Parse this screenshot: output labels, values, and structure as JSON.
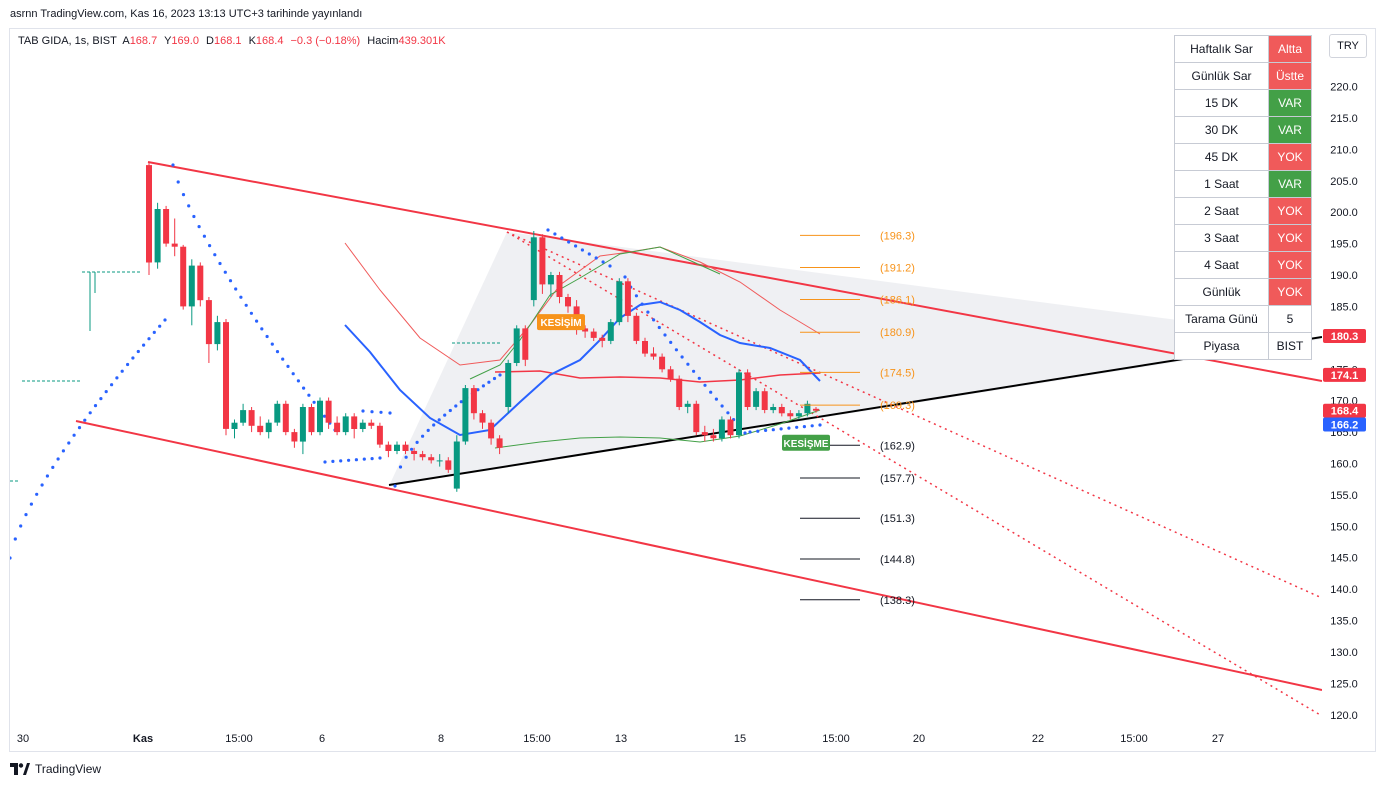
{
  "attribution": "asrnn TradingView.com, Kas 16, 2023 13:13 UTC+3 tarihinde yayınlandı",
  "legend": {
    "symbol": "TAB GIDA, 1s, BIST",
    "open_label": "A",
    "open": "168.7",
    "high_label": "Y",
    "high": "169.0",
    "low_label": "D",
    "low": "168.1",
    "close_label": "K",
    "close": "168.4",
    "change": "−0.3 (−0.18%)",
    "volume_label": "Hacim",
    "volume": "439.301K"
  },
  "currency_button": "TRY",
  "brand": "TradingView",
  "status_table": [
    {
      "label": "Haftalık Sar",
      "value": "Altta",
      "color": "#f05a5a"
    },
    {
      "label": "Günlük Sar",
      "value": "Üstte",
      "color": "#f05a5a"
    },
    {
      "label": "15 DK",
      "value": "VAR",
      "color": "#43a047"
    },
    {
      "label": "30 DK",
      "value": "VAR",
      "color": "#43a047"
    },
    {
      "label": "45 DK",
      "value": "YOK",
      "color": "#f05a5a"
    },
    {
      "label": "1 Saat",
      "value": "VAR",
      "color": "#43a047"
    },
    {
      "label": "2 Saat",
      "value": "YOK",
      "color": "#f05a5a"
    },
    {
      "label": "3 Saat",
      "value": "YOK",
      "color": "#f05a5a"
    },
    {
      "label": "4 Saat",
      "value": "YOK",
      "color": "#f05a5a"
    },
    {
      "label": "Günlük",
      "value": "YOK",
      "color": "#f05a5a"
    },
    {
      "label": "Tarama Günü",
      "value": "5",
      "color": ""
    },
    {
      "label": "Piyasa",
      "value": "BIST",
      "color": ""
    }
  ],
  "chart_data": {
    "type": "candlestick",
    "colors": {
      "up": "#089981",
      "down": "#f23645",
      "channel": "#f23645",
      "trend": "#000000",
      "sar": "#2962ff",
      "ma": "#2962ff"
    },
    "x_ticks": [
      "30",
      "Kas",
      "15:00",
      "6",
      "8",
      "15:00",
      "13",
      "15",
      "15:00",
      "20",
      "22",
      "15:00",
      "27"
    ],
    "y_ticks": [
      220.0,
      215.0,
      210.0,
      205.0,
      200.0,
      195.0,
      190.0,
      185.0,
      180.0,
      175.0,
      170.0,
      165.0,
      160.0,
      155.0,
      150.0,
      145.0,
      140.0,
      135.0,
      130.0,
      125.0,
      120.0
    ],
    "y_range": [
      118,
      225
    ],
    "price_badges": [
      {
        "value": "180.3",
        "color": "#f23645"
      },
      {
        "value": "174.1",
        "color": "#f23645"
      },
      {
        "value": "168.4",
        "color": "#f23645"
      },
      {
        "value": "166.2",
        "color": "#2962ff"
      }
    ],
    "targets_upper": [
      "(196.3)",
      "(191.2)",
      "(186.1)",
      "(180.9)",
      "(174.5)",
      "(169.3)"
    ],
    "targets_upper_values": [
      196.3,
      191.2,
      186.1,
      180.9,
      174.5,
      169.3
    ],
    "targets_lower": [
      "(162.9)",
      "(157.7)",
      "(151.3)",
      "(144.8)",
      "(138.3)"
    ],
    "targets_lower_values": [
      162.9,
      157.7,
      151.3,
      144.8,
      138.3
    ],
    "labels": [
      {
        "text": "KESİŞİM",
        "color": "#f7931a",
        "value": 182.5
      },
      {
        "text": "KESİŞME",
        "color": "#43a047",
        "value": 163.3
      }
    ],
    "candles": [
      [
        207.5,
        208.0,
        190.0,
        192.0
      ],
      [
        192.0,
        201.5,
        191.0,
        200.5
      ],
      [
        200.5,
        201.0,
        194.5,
        195.0
      ],
      [
        195.0,
        199.0,
        193.0,
        194.5
      ],
      [
        194.5,
        194.8,
        184.5,
        185.0
      ],
      [
        185.0,
        192.5,
        182.0,
        191.5
      ],
      [
        191.5,
        192.0,
        185.0,
        186.0
      ],
      [
        186.0,
        186.5,
        176.0,
        179.0
      ],
      [
        179.0,
        183.5,
        178.0,
        182.5
      ],
      [
        182.5,
        183.0,
        164.5,
        165.5
      ],
      [
        165.5,
        167.0,
        164.0,
        166.5
      ],
      [
        166.5,
        169.5,
        166.0,
        168.5
      ],
      [
        168.5,
        169.0,
        165.0,
        166.0
      ],
      [
        166.0,
        167.5,
        164.5,
        165.0
      ],
      [
        165.0,
        167.0,
        164.0,
        166.5
      ],
      [
        166.5,
        170.0,
        166.0,
        169.5
      ],
      [
        169.5,
        170.0,
        164.5,
        165.0
      ],
      [
        165.0,
        165.5,
        162.5,
        163.5
      ],
      [
        163.5,
        169.5,
        161.5,
        169.0
      ],
      [
        169.0,
        169.5,
        164.5,
        165.0
      ],
      [
        165.0,
        170.5,
        164.5,
        170.0
      ],
      [
        170.0,
        170.5,
        165.5,
        166.5
      ],
      [
        166.5,
        167.5,
        164.5,
        165.0
      ],
      [
        165.0,
        168.0,
        164.5,
        167.5
      ],
      [
        167.5,
        168.0,
        164.0,
        165.5
      ],
      [
        165.5,
        167.0,
        165.0,
        166.5
      ],
      [
        166.5,
        167.0,
        165.5,
        166.0
      ],
      [
        166.0,
        166.5,
        162.5,
        163.0
      ],
      [
        163.0,
        163.5,
        161.0,
        162.0
      ],
      [
        162.0,
        163.5,
        161.5,
        163.0
      ],
      [
        163.0,
        163.5,
        161.5,
        162.0
      ],
      [
        162.0,
        162.5,
        160.5,
        161.5
      ],
      [
        161.5,
        162.0,
        160.5,
        161.0
      ],
      [
        161.0,
        161.5,
        160.0,
        160.5
      ],
      [
        160.5,
        161.5,
        159.5,
        160.5
      ],
      [
        160.5,
        161.0,
        158.5,
        159.0
      ],
      [
        156.0,
        164.5,
        155.5,
        163.5
      ],
      [
        163.5,
        172.5,
        163.0,
        172.0
      ],
      [
        172.0,
        172.5,
        167.0,
        168.0
      ],
      [
        168.0,
        168.5,
        165.5,
        166.5
      ],
      [
        166.5,
        167.0,
        163.0,
        164.0
      ],
      [
        164.0,
        164.5,
        161.5,
        162.5
      ],
      [
        169.0,
        176.5,
        168.0,
        176.0
      ],
      [
        176.0,
        182.0,
        175.5,
        181.5
      ],
      [
        181.5,
        182.0,
        175.5,
        176.5
      ],
      [
        186.0,
        197.0,
        185.0,
        196.0
      ],
      [
        196.0,
        196.5,
        187.0,
        188.5
      ],
      [
        188.5,
        190.5,
        186.5,
        190.0
      ],
      [
        190.0,
        190.5,
        185.5,
        186.5
      ],
      [
        186.5,
        187.0,
        184.0,
        185.0
      ],
      [
        185.0,
        186.0,
        180.5,
        181.5
      ],
      [
        181.5,
        182.0,
        180.0,
        181.0
      ],
      [
        181.0,
        181.5,
        179.5,
        180.0
      ],
      [
        180.0,
        180.5,
        178.5,
        179.5
      ],
      [
        179.5,
        183.0,
        179.0,
        182.5
      ],
      [
        182.5,
        189.5,
        182.0,
        189.0
      ],
      [
        189.0,
        189.5,
        182.5,
        183.5
      ],
      [
        183.5,
        184.0,
        179.0,
        179.5
      ],
      [
        179.5,
        180.0,
        177.0,
        177.5
      ],
      [
        177.5,
        178.5,
        176.5,
        177.0
      ],
      [
        177.0,
        177.5,
        174.5,
        175.0
      ],
      [
        175.0,
        175.5,
        173.0,
        173.5
      ],
      [
        173.5,
        174.0,
        168.5,
        169.0
      ],
      [
        169.0,
        170.0,
        168.0,
        169.5
      ],
      [
        169.5,
        170.0,
        164.5,
        165.0
      ],
      [
        165.0,
        166.0,
        163.5,
        164.5
      ],
      [
        164.5,
        165.5,
        163.5,
        164.0
      ],
      [
        164.0,
        167.5,
        163.5,
        167.0
      ],
      [
        167.0,
        167.5,
        164.0,
        164.5
      ],
      [
        164.5,
        175.0,
        164.0,
        174.5
      ],
      [
        174.5,
        175.0,
        168.5,
        169.0
      ],
      [
        169.0,
        172.0,
        168.5,
        171.5
      ],
      [
        171.5,
        172.0,
        168.0,
        168.5
      ],
      [
        168.5,
        169.5,
        168.0,
        169.0
      ],
      [
        169.0,
        169.5,
        167.5,
        168.0
      ],
      [
        168.0,
        168.5,
        167.0,
        167.5
      ],
      [
        167.5,
        168.5,
        167.0,
        168.0
      ],
      [
        168.0,
        170.0,
        167.5,
        169.5
      ],
      [
        168.7,
        169.0,
        168.1,
        168.4
      ]
    ]
  }
}
